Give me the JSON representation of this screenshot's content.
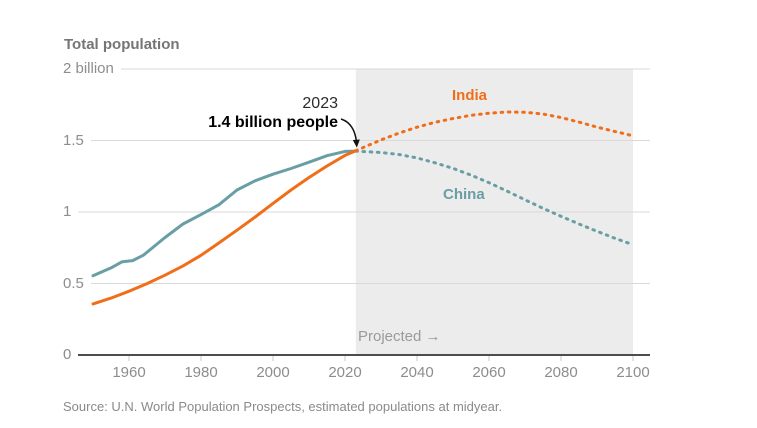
{
  "header": {
    "title": "Total population"
  },
  "colors": {
    "india_orange": "#f06e19",
    "china_teal": "#699ea5",
    "projection_shade": "#ececec",
    "grid_line": "#d9d9d9",
    "axis_line": "#4d4d4d",
    "axis_tick": "#c9c9c9",
    "annotation_ink": "#111111"
  },
  "chart_data": {
    "type": "line",
    "title": "Total population",
    "unit": "billions of people",
    "x_axis": {
      "min": 1950,
      "max": 2100,
      "ticks": [
        1960,
        1980,
        2000,
        2020,
        2040,
        2060,
        2080,
        2100
      ]
    },
    "y_axis": {
      "min": 0,
      "max": 2,
      "tick_values": [
        2,
        1.5,
        1,
        0.5,
        0
      ],
      "tick_labels": [
        "2 billion",
        "1.5",
        "1",
        "0.5",
        "0"
      ]
    },
    "grid": "horizontal-only",
    "projection": {
      "start_year": 2023,
      "end_year": 2100,
      "label": "Projected →"
    },
    "annotation": {
      "line1": "2023",
      "line2": "1.4 billion people",
      "year": 2023,
      "value": 1.43
    },
    "series": [
      {
        "name": "India",
        "color": "#f06e19",
        "historical": [
          [
            1950,
            0.357
          ],
          [
            1955,
            0.398
          ],
          [
            1960,
            0.446
          ],
          [
            1965,
            0.499
          ],
          [
            1970,
            0.558
          ],
          [
            1975,
            0.623
          ],
          [
            1980,
            0.697
          ],
          [
            1985,
            0.784
          ],
          [
            1990,
            0.873
          ],
          [
            1995,
            0.964
          ],
          [
            2000,
            1.06
          ],
          [
            2005,
            1.154
          ],
          [
            2010,
            1.241
          ],
          [
            2015,
            1.322
          ],
          [
            2020,
            1.396
          ],
          [
            2023,
            1.429
          ]
        ],
        "projected": [
          [
            2023,
            1.429
          ],
          [
            2030,
            1.504
          ],
          [
            2035,
            1.552
          ],
          [
            2040,
            1.593
          ],
          [
            2045,
            1.627
          ],
          [
            2050,
            1.654
          ],
          [
            2055,
            1.676
          ],
          [
            2060,
            1.691
          ],
          [
            2065,
            1.699
          ],
          [
            2070,
            1.697
          ],
          [
            2075,
            1.685
          ],
          [
            2080,
            1.661
          ],
          [
            2085,
            1.629
          ],
          [
            2090,
            1.594
          ],
          [
            2095,
            1.563
          ],
          [
            2100,
            1.533
          ]
        ]
      },
      {
        "name": "China",
        "color": "#699ea5",
        "historical": [
          [
            1950,
            0.554
          ],
          [
            1955,
            0.609
          ],
          [
            1958,
            0.651
          ],
          [
            1961,
            0.66
          ],
          [
            1964,
            0.698
          ],
          [
            1970,
            0.822
          ],
          [
            1975,
            0.916
          ],
          [
            1980,
            0.982
          ],
          [
            1985,
            1.051
          ],
          [
            1990,
            1.154
          ],
          [
            1995,
            1.218
          ],
          [
            2000,
            1.264
          ],
          [
            2005,
            1.304
          ],
          [
            2010,
            1.348
          ],
          [
            2015,
            1.394
          ],
          [
            2020,
            1.424
          ],
          [
            2023,
            1.426
          ]
        ],
        "projected": [
          [
            2023,
            1.426
          ],
          [
            2030,
            1.416
          ],
          [
            2035,
            1.402
          ],
          [
            2040,
            1.378
          ],
          [
            2045,
            1.344
          ],
          [
            2050,
            1.305
          ],
          [
            2055,
            1.258
          ],
          [
            2060,
            1.205
          ],
          [
            2065,
            1.146
          ],
          [
            2070,
            1.085
          ],
          [
            2075,
            1.026
          ],
          [
            2080,
            0.97
          ],
          [
            2085,
            0.916
          ],
          [
            2090,
            0.865
          ],
          [
            2095,
            0.816
          ],
          [
            2100,
            0.771
          ]
        ]
      }
    ]
  },
  "source": "Source: U.N. World Population Prospects, estimated populations at midyear."
}
